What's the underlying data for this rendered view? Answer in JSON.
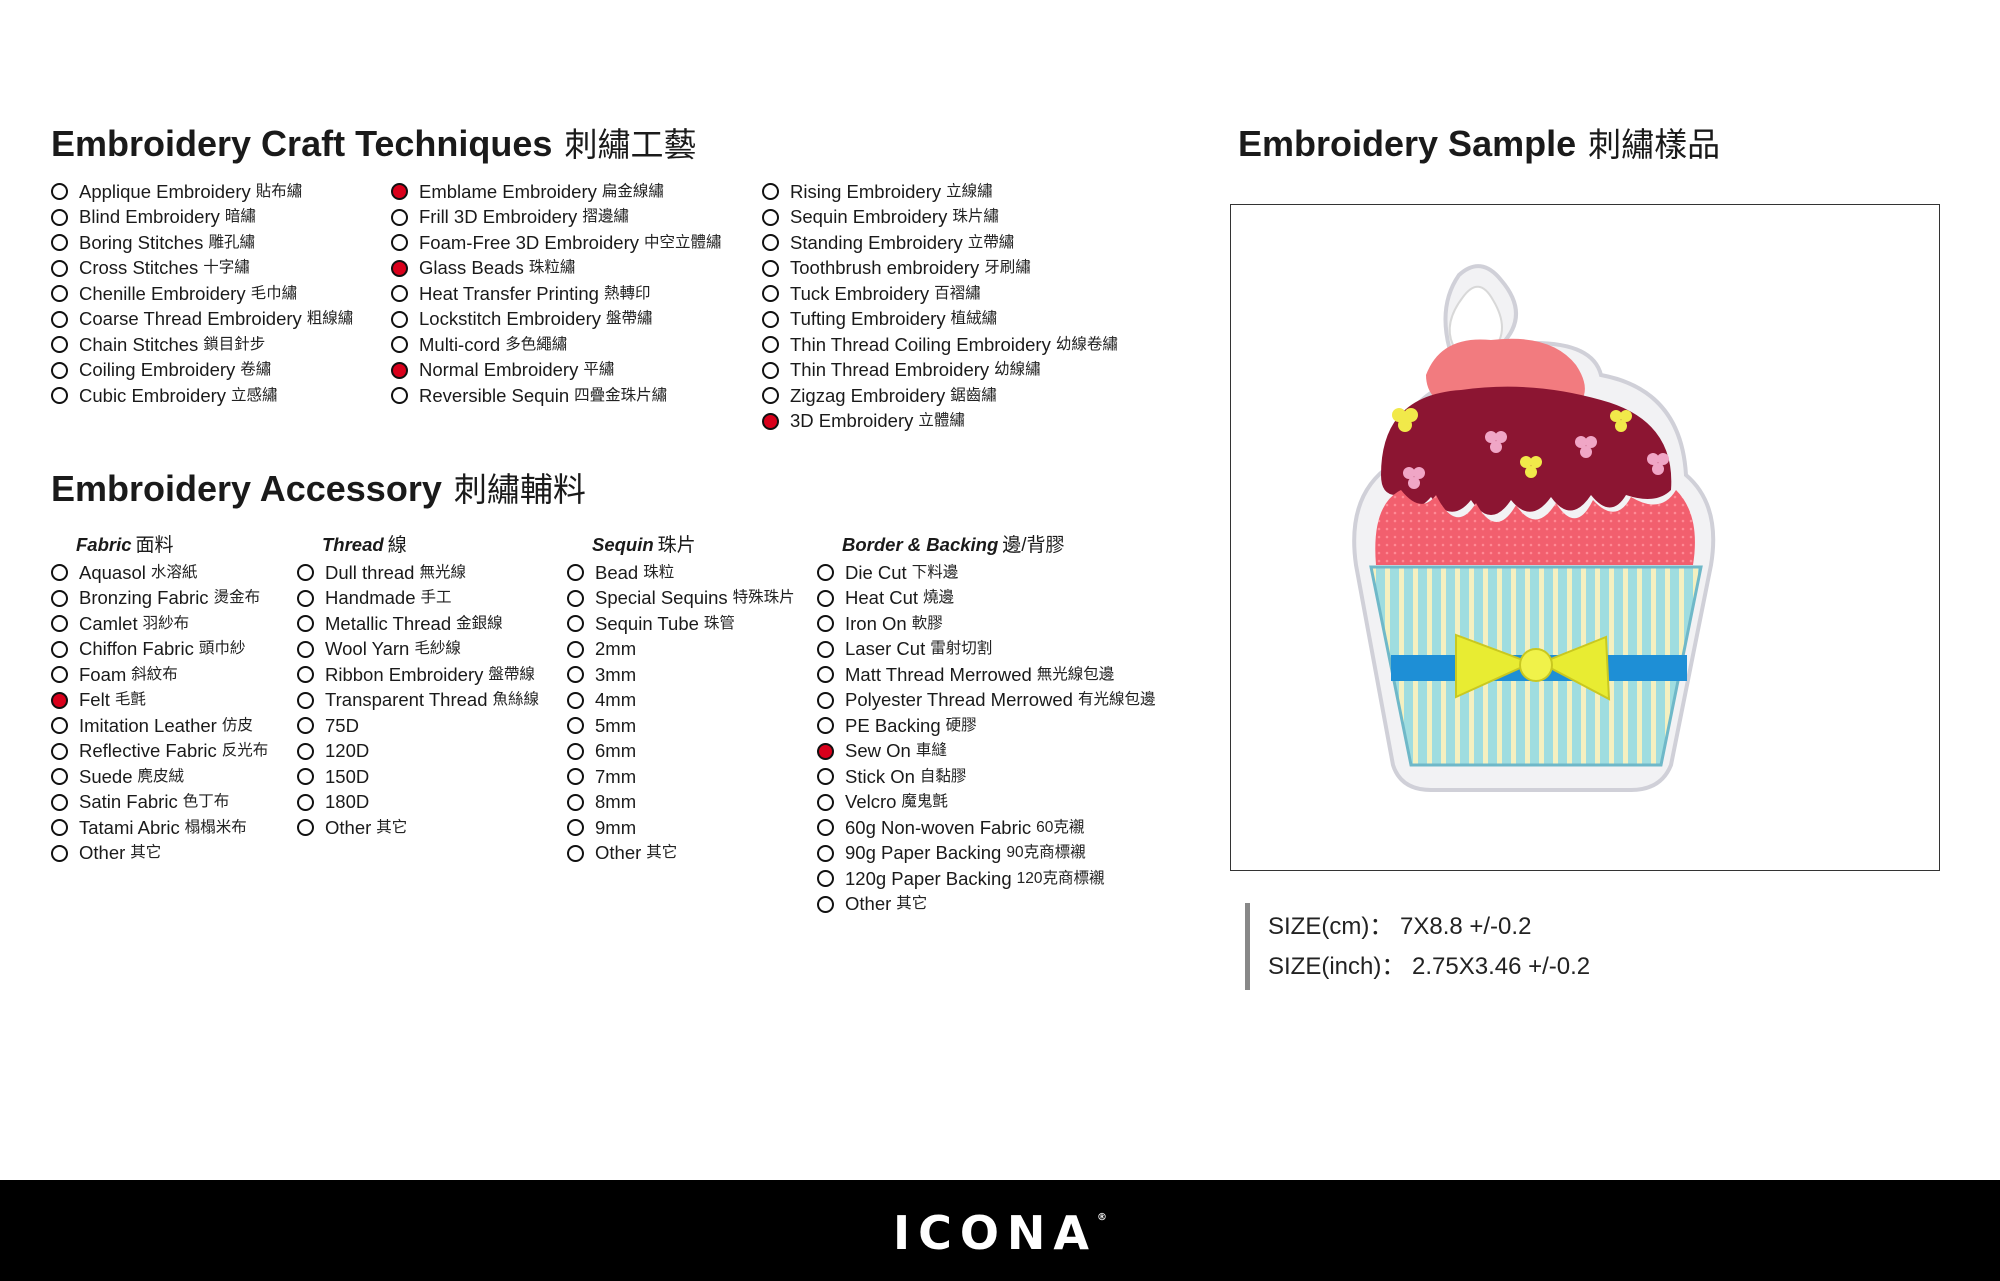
{
  "craft": {
    "title": "Embroidery Craft Techniques",
    "title_zh": "刺繡工藝",
    "columns": [
      [
        {
          "en": "Applique Embroidery",
          "zh": "貼布繡",
          "checked": false
        },
        {
          "en": "Blind Embroidery",
          "zh": "暗繡",
          "checked": false
        },
        {
          "en": "Boring Stitches",
          "zh": "雕孔繡",
          "checked": false
        },
        {
          "en": "Cross Stitches",
          "zh": "十字繡",
          "checked": false
        },
        {
          "en": "Chenille Embroidery",
          "zh": "毛巾繡",
          "checked": false
        },
        {
          "en": "Coarse Thread Embroidery",
          "zh": "粗線繡",
          "checked": false
        },
        {
          "en": "Chain Stitches",
          "zh": "鎖目針步",
          "checked": false
        },
        {
          "en": "Coiling Embroidery",
          "zh": "卷繡",
          "checked": false
        },
        {
          "en": "Cubic Embroidery",
          "zh": "立感繡",
          "checked": false
        }
      ],
      [
        {
          "en": "Emblame Embroidery",
          "zh": "扁金線繡",
          "checked": true
        },
        {
          "en": "Frill 3D Embroidery",
          "zh": "摺邊繡",
          "checked": false
        },
        {
          "en": "Foam-Free 3D Embroidery",
          "zh": "中空立體繡",
          "checked": false
        },
        {
          "en": "Glass Beads",
          "zh": "珠粒繡",
          "checked": true
        },
        {
          "en": "Heat Transfer Printing",
          "zh": "熱轉印",
          "checked": false
        },
        {
          "en": "Lockstitch Embroidery",
          "zh": "盤帶繡",
          "checked": false
        },
        {
          "en": "Multi-cord",
          "zh": "多色繩繡",
          "checked": false
        },
        {
          "en": "Normal Embroidery",
          "zh": "平繡",
          "checked": true
        },
        {
          "en": "Reversible Sequin",
          "zh": "四疊金珠片繡",
          "checked": false
        }
      ],
      [
        {
          "en": "Rising Embroidery",
          "zh": "立線繡",
          "checked": false
        },
        {
          "en": "Sequin Embroidery",
          "zh": "珠片繡",
          "checked": false
        },
        {
          "en": "Standing Embroidery",
          "zh": "立帶繡",
          "checked": false
        },
        {
          "en": "Toothbrush embroidery",
          "zh": "牙刷繡",
          "checked": false
        },
        {
          "en": "Tuck Embroidery",
          "zh": "百褶繡",
          "checked": false
        },
        {
          "en": "Tufting Embroidery",
          "zh": "植絨繡",
          "checked": false
        },
        {
          "en": "Thin Thread Coiling Embroidery",
          "zh": "幼線卷繡",
          "checked": false
        },
        {
          "en": "Thin Thread Embroidery",
          "zh": "幼線繡",
          "checked": false
        },
        {
          "en": "Zigzag Embroidery",
          "zh": "鋸齒繡",
          "checked": false
        },
        {
          "en": "3D Embroidery",
          "zh": "立體繡",
          "checked": true
        }
      ]
    ]
  },
  "accessory": {
    "title": "Embroidery Accessory",
    "title_zh": "刺繡輔料",
    "groups": [
      {
        "title": "Fabric",
        "title_zh": "面料",
        "items": [
          {
            "en": "Aquasol",
            "zh": "水溶紙",
            "checked": false
          },
          {
            "en": "Bronzing Fabric",
            "zh": "燙金布",
            "checked": false
          },
          {
            "en": "Camlet",
            "zh": "羽紗布",
            "checked": false
          },
          {
            "en": "Chiffon Fabric",
            "zh": "頭巾紗",
            "checked": false
          },
          {
            "en": "Foam",
            "zh": "斜紋布",
            "checked": false
          },
          {
            "en": "Felt",
            "zh": "毛氈",
            "checked": true
          },
          {
            "en": "Imitation Leather",
            "zh": "仿皮",
            "checked": false
          },
          {
            "en": "Reflective Fabric",
            "zh": "反光布",
            "checked": false
          },
          {
            "en": "Suede",
            "zh": "麂皮絨",
            "checked": false
          },
          {
            "en": "Satin Fabric",
            "zh": "色丁布",
            "checked": false
          },
          {
            "en": "Tatami Abric",
            "zh": "榻榻米布",
            "checked": false
          },
          {
            "en": "Other",
            "zh": "其它",
            "checked": false
          }
        ]
      },
      {
        "title": "Thread",
        "title_zh": "線",
        "items": [
          {
            "en": "Dull thread",
            "zh": "無光線",
            "checked": false
          },
          {
            "en": "Handmade",
            "zh": "手工",
            "checked": false
          },
          {
            "en": "Metallic Thread",
            "zh": "金銀線",
            "checked": false
          },
          {
            "en": "Wool Yarn",
            "zh": "毛紗線",
            "checked": false
          },
          {
            "en": "Ribbon Embroidery",
            "zh": "盤帶線",
            "checked": false
          },
          {
            "en": "Transparent Thread",
            "zh": "魚絲線",
            "checked": false
          },
          {
            "en": "75D",
            "zh": "",
            "checked": false
          },
          {
            "en": "120D",
            "zh": "",
            "checked": false
          },
          {
            "en": "150D",
            "zh": "",
            "checked": false
          },
          {
            "en": "180D",
            "zh": "",
            "checked": false
          },
          {
            "en": "Other",
            "zh": "其它",
            "checked": false
          }
        ]
      },
      {
        "title": "Sequin",
        "title_zh": "珠片",
        "items": [
          {
            "en": "Bead",
            "zh": "珠粒",
            "checked": false
          },
          {
            "en": "Special Sequins",
            "zh": "特殊珠片",
            "checked": false
          },
          {
            "en": "Sequin Tube",
            "zh": "珠管",
            "checked": false
          },
          {
            "en": "2mm",
            "zh": "",
            "checked": false
          },
          {
            "en": "3mm",
            "zh": "",
            "checked": false
          },
          {
            "en": "4mm",
            "zh": "",
            "checked": false
          },
          {
            "en": "5mm",
            "zh": "",
            "checked": false
          },
          {
            "en": "6mm",
            "zh": "",
            "checked": false
          },
          {
            "en": "7mm",
            "zh": "",
            "checked": false
          },
          {
            "en": "8mm",
            "zh": "",
            "checked": false
          },
          {
            "en": "9mm",
            "zh": "",
            "checked": false
          },
          {
            "en": "Other",
            "zh": "其它",
            "checked": false
          }
        ]
      },
      {
        "title": "Border & Backing",
        "title_zh": "邊/背膠",
        "items": [
          {
            "en": "Die Cut",
            "zh": "下料邊",
            "checked": false
          },
          {
            "en": "Heat Cut",
            "zh": "燒邊",
            "checked": false
          },
          {
            "en": "Iron On",
            "zh": "軟膠",
            "checked": false
          },
          {
            "en": "Laser Cut",
            "zh": "雷射切割",
            "checked": false
          },
          {
            "en": "Matt Thread Merrowed",
            "zh": "無光線包邊",
            "checked": false
          },
          {
            "en": "Polyester Thread Merrowed",
            "zh": "有光線包邊",
            "checked": false
          },
          {
            "en": "PE Backing",
            "zh": "硬膠",
            "checked": false
          },
          {
            "en": "Sew On",
            "zh": "車縫",
            "checked": true
          },
          {
            "en": "Stick On",
            "zh": "自黏膠",
            "checked": false
          },
          {
            "en": "Velcro",
            "zh": "魔鬼氈",
            "checked": false
          },
          {
            "en": "60g Non-woven Fabric",
            "zh": "60克襯",
            "checked": false
          },
          {
            "en": "90g Paper Backing",
            "zh": "90克商標襯",
            "checked": false
          },
          {
            "en": "120g Paper Backing",
            "zh": "120克商標襯",
            "checked": false
          },
          {
            "en": "Other",
            "zh": "其它",
            "checked": false
          }
        ]
      }
    ]
  },
  "sample": {
    "title": "Embroidery Sample",
    "title_zh": "刺繡樣品",
    "size_cm": "SIZE(cm)： 7X8.8 +/-0.2",
    "size_inch": "SIZE(inch)：  2.75X3.46 +/-0.2"
  },
  "footer": {
    "brand": "ICONA",
    "reg": "®"
  },
  "colors": {
    "checked": "#d9001b",
    "footer_bg": "#000000"
  }
}
